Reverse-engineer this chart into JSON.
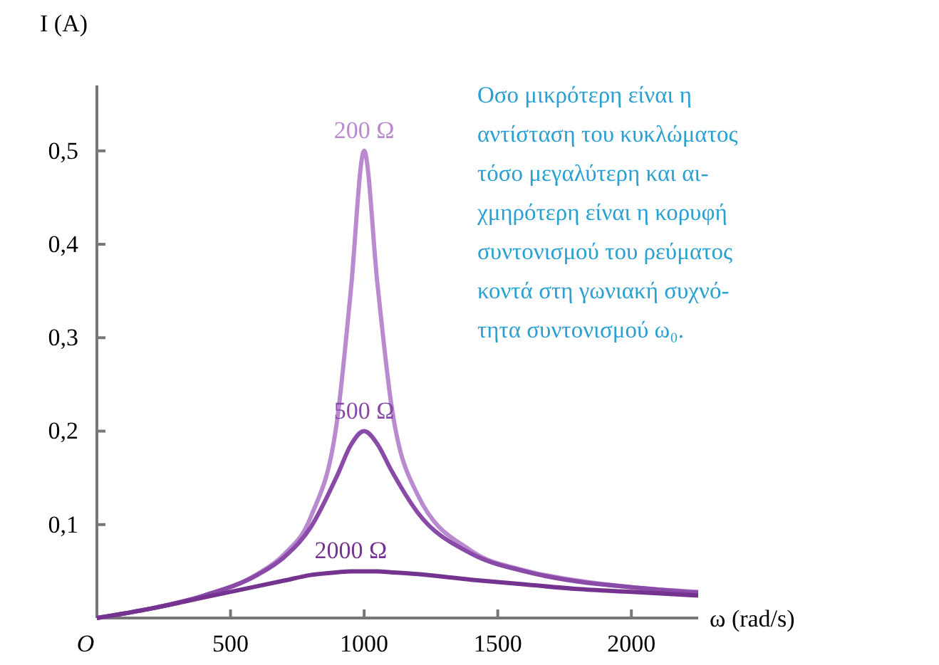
{
  "chart_data": {
    "type": "line",
    "xlabel": "ω (rad/s)",
    "ylabel": "I (A)",
    "x": [
      0,
      200,
      400,
      600,
      700,
      800,
      900,
      950,
      1000,
      1050,
      1100,
      1200,
      1400,
      1600,
      1800,
      2000,
      2250
    ],
    "xlim": [
      0,
      2250
    ],
    "ylim": [
      0,
      0.57
    ],
    "xticks": [
      {
        "value": 0,
        "label": "O"
      },
      500,
      1000,
      1500,
      2000
    ],
    "yticks": [
      {
        "value": 0.1,
        "label": "0,1"
      },
      {
        "value": 0.2,
        "label": "0,2"
      },
      {
        "value": 0.3,
        "label": "0,3"
      },
      {
        "value": 0.4,
        "label": "0,4"
      },
      {
        "value": 0.5,
        "label": "0,5"
      }
    ],
    "grid": false,
    "legend": false,
    "marker": "none",
    "line_style": "solid",
    "series": [
      {
        "name": "200 Ω",
        "color": "#b98ad0",
        "values": [
          0,
          0.01,
          0.024,
          0.047,
          0.068,
          0.108,
          0.214,
          0.35,
          0.5,
          0.357,
          0.232,
          0.132,
          0.072,
          0.051,
          0.04,
          0.033,
          0.028
        ]
      },
      {
        "name": "500 Ω",
        "color": "#8a4aa8",
        "values": [
          0,
          0.01,
          0.024,
          0.046,
          0.065,
          0.097,
          0.153,
          0.185,
          0.2,
          0.186,
          0.159,
          0.113,
          0.069,
          0.05,
          0.039,
          0.033,
          0.027
        ]
      },
      {
        "name": "2000 Ω",
        "color": "#74338f",
        "values": [
          0,
          0.01,
          0.022,
          0.034,
          0.04,
          0.046,
          0.049,
          0.05,
          0.05,
          0.05,
          0.049,
          0.047,
          0.041,
          0.036,
          0.031,
          0.028,
          0.024
        ]
      }
    ],
    "annotations": [
      "Οσο μικρότερη είναι η\nαντίσταση του κυκλώματος\nτόσο μεγαλύτερη και αι-\nχμηρότερη είναι η κορυφή\nσυντονισμού του ρεύματος\nκοντά στη γωνιακή συχνό-\nτητα συντονισμού ω₀."
    ]
  }
}
